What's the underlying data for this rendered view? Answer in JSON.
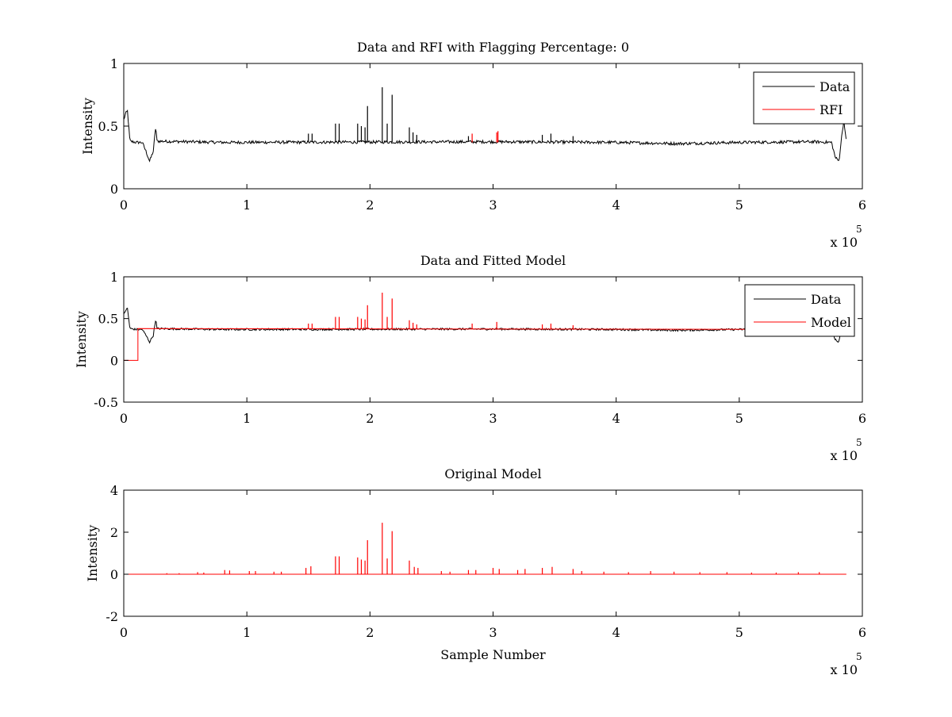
{
  "figure": {
    "background": "#ffffff",
    "line_colors": {
      "Data": "#000000",
      "RFI": "#ff0000",
      "Model": "#ff0000"
    }
  },
  "chart_data": [
    {
      "type": "line",
      "title": "Data and RFI with Flagging Percentage: 0",
      "xlabel": "",
      "ylabel": "Intensity",
      "xlim": [
        0,
        600000
      ],
      "ylim": [
        0,
        1
      ],
      "x_ticks": [
        0,
        1,
        2,
        3,
        4,
        5,
        6
      ],
      "x_tick_labels": [
        "0",
        "1",
        "2",
        "3",
        "4",
        "5",
        "6"
      ],
      "x_multiplier": "x 10",
      "x_multiplier_exponent": "5",
      "y_ticks": [
        0,
        0.5,
        1
      ],
      "y_tick_labels": [
        "0",
        "0.5",
        "1"
      ],
      "grid": false,
      "legend_position": "top-right",
      "series": [
        {
          "name": "Data",
          "color": "#000000",
          "baseline": 0.37,
          "noise": 0.012,
          "points": [
            [
              0,
              0.55
            ],
            [
              1500,
              0.6
            ],
            [
              3000,
              0.62
            ],
            [
              5000,
              0.38
            ],
            [
              10000,
              0.37
            ],
            [
              15000,
              0.37
            ],
            [
              18000,
              0.3
            ],
            [
              21000,
              0.22
            ],
            [
              24000,
              0.3
            ],
            [
              26000,
              0.5
            ],
            [
              27000,
              0.38
            ],
            [
              80000,
              0.37
            ],
            [
              300000,
              0.375
            ],
            [
              400000,
              0.37
            ],
            [
              450000,
              0.36
            ],
            [
              500000,
              0.37
            ],
            [
              560000,
              0.375
            ],
            [
              575000,
              0.37
            ],
            [
              578000,
              0.25
            ],
            [
              581000,
              0.22
            ],
            [
              583000,
              0.4
            ],
            [
              585000,
              0.55
            ],
            [
              587000,
              0.37
            ]
          ],
          "spikes": [
            [
              150000,
              0.44
            ],
            [
              153000,
              0.44
            ],
            [
              172000,
              0.52
            ],
            [
              175000,
              0.52
            ],
            [
              190000,
              0.52
            ],
            [
              193000,
              0.5
            ],
            [
              196000,
              0.49
            ],
            [
              198000,
              0.66
            ],
            [
              210000,
              0.81
            ],
            [
              214000,
              0.52
            ],
            [
              218000,
              0.75
            ],
            [
              232000,
              0.49
            ],
            [
              235000,
              0.45
            ],
            [
              238000,
              0.43
            ],
            [
              280000,
              0.42
            ],
            [
              340000,
              0.43
            ],
            [
              347000,
              0.44
            ],
            [
              365000,
              0.42
            ]
          ]
        },
        {
          "name": "RFI",
          "color": "#ff0000",
          "spikes": [
            [
              283000,
              0.44
            ],
            [
              303000,
              0.45
            ],
            [
              304000,
              0.46
            ]
          ]
        }
      ]
    },
    {
      "type": "line",
      "title": "Data and Fitted Model",
      "xlabel": "",
      "ylabel": "Intensity",
      "xlim": [
        0,
        600000
      ],
      "ylim": [
        -0.5,
        1
      ],
      "x_ticks": [
        0,
        1,
        2,
        3,
        4,
        5,
        6
      ],
      "x_tick_labels": [
        "0",
        "1",
        "2",
        "3",
        "4",
        "5",
        "6"
      ],
      "x_multiplier": "x 10",
      "x_multiplier_exponent": "5",
      "y_ticks": [
        -0.5,
        0,
        0.5,
        1
      ],
      "y_tick_labels": [
        "-0.5",
        "0",
        "0.5",
        "1"
      ],
      "grid": false,
      "legend_position": "top-right",
      "series": [
        {
          "name": "Data",
          "color": "#000000",
          "baseline": 0.37,
          "noise": 0.012,
          "points": [
            [
              0,
              0.55
            ],
            [
              1500,
              0.6
            ],
            [
              3000,
              0.62
            ],
            [
              5000,
              0.38
            ],
            [
              10000,
              0.37
            ],
            [
              15000,
              0.37
            ],
            [
              18000,
              0.3
            ],
            [
              21000,
              0.22
            ],
            [
              24000,
              0.3
            ],
            [
              26000,
              0.5
            ],
            [
              27000,
              0.38
            ],
            [
              80000,
              0.37
            ],
            [
              300000,
              0.375
            ],
            [
              400000,
              0.37
            ],
            [
              450000,
              0.36
            ],
            [
              500000,
              0.37
            ],
            [
              560000,
              0.375
            ],
            [
              575000,
              0.37
            ],
            [
              578000,
              0.25
            ],
            [
              581000,
              0.22
            ],
            [
              583000,
              0.4
            ],
            [
              585000,
              0.55
            ],
            [
              587000,
              0.37
            ]
          ],
          "spikes": []
        },
        {
          "name": "Model",
          "color": "#ff0000",
          "points": [
            [
              0,
              0
            ],
            [
              11500,
              0
            ],
            [
              11500,
              0.38
            ],
            [
              587000,
              0.37
            ]
          ],
          "spikes": [
            [
              150000,
              0.44
            ],
            [
              153000,
              0.44
            ],
            [
              172000,
              0.52
            ],
            [
              175000,
              0.52
            ],
            [
              190000,
              0.52
            ],
            [
              193000,
              0.5
            ],
            [
              196000,
              0.49
            ],
            [
              198000,
              0.66
            ],
            [
              210000,
              0.81
            ],
            [
              214000,
              0.52
            ],
            [
              218000,
              0.74
            ],
            [
              232000,
              0.48
            ],
            [
              235000,
              0.45
            ],
            [
              238000,
              0.43
            ],
            [
              283000,
              0.44
            ],
            [
              303000,
              0.46
            ],
            [
              340000,
              0.43
            ],
            [
              347000,
              0.44
            ],
            [
              365000,
              0.42
            ]
          ]
        }
      ]
    },
    {
      "type": "line",
      "title": "Original Model",
      "xlabel": "Sample Number",
      "ylabel": "Intensity",
      "xlim": [
        0,
        600000
      ],
      "ylim": [
        -2,
        4
      ],
      "x_ticks": [
        0,
        1,
        2,
        3,
        4,
        5,
        6
      ],
      "x_tick_labels": [
        "0",
        "1",
        "2",
        "3",
        "4",
        "5",
        "6"
      ],
      "x_multiplier": "x 10",
      "x_multiplier_exponent": "5",
      "y_ticks": [
        -2,
        0,
        2,
        4
      ],
      "y_tick_labels": [
        "-2",
        "0",
        "2",
        "4"
      ],
      "grid": false,
      "legend_position": "none",
      "series": [
        {
          "color": "#ff0000",
          "points": [
            [
              0,
              0
            ],
            [
              587000,
              0
            ]
          ],
          "spikes": [
            [
              35000,
              0.05
            ],
            [
              45000,
              0.05
            ],
            [
              60000,
              0.1
            ],
            [
              65000,
              0.08
            ],
            [
              82000,
              0.2
            ],
            [
              86000,
              0.18
            ],
            [
              102000,
              0.15
            ],
            [
              107000,
              0.15
            ],
            [
              122000,
              0.12
            ],
            [
              128000,
              0.12
            ],
            [
              148000,
              0.3
            ],
            [
              152000,
              0.38
            ],
            [
              172000,
              0.85
            ],
            [
              175000,
              0.85
            ],
            [
              190000,
              0.8
            ],
            [
              193000,
              0.7
            ],
            [
              196000,
              0.65
            ],
            [
              198000,
              1.62
            ],
            [
              210000,
              2.45
            ],
            [
              214000,
              0.75
            ],
            [
              218000,
              2.05
            ],
            [
              232000,
              0.65
            ],
            [
              236000,
              0.35
            ],
            [
              239000,
              0.3
            ],
            [
              258000,
              0.15
            ],
            [
              265000,
              0.12
            ],
            [
              280000,
              0.2
            ],
            [
              286000,
              0.2
            ],
            [
              300000,
              0.3
            ],
            [
              305000,
              0.25
            ],
            [
              320000,
              0.2
            ],
            [
              326000,
              0.25
            ],
            [
              340000,
              0.3
            ],
            [
              348000,
              0.35
            ],
            [
              365000,
              0.25
            ],
            [
              372000,
              0.15
            ],
            [
              390000,
              0.12
            ],
            [
              410000,
              0.1
            ],
            [
              428000,
              0.15
            ],
            [
              447000,
              0.12
            ],
            [
              468000,
              0.1
            ],
            [
              490000,
              0.1
            ],
            [
              510000,
              0.08
            ],
            [
              530000,
              0.08
            ],
            [
              548000,
              0.1
            ],
            [
              565000,
              0.1
            ]
          ]
        }
      ]
    }
  ]
}
